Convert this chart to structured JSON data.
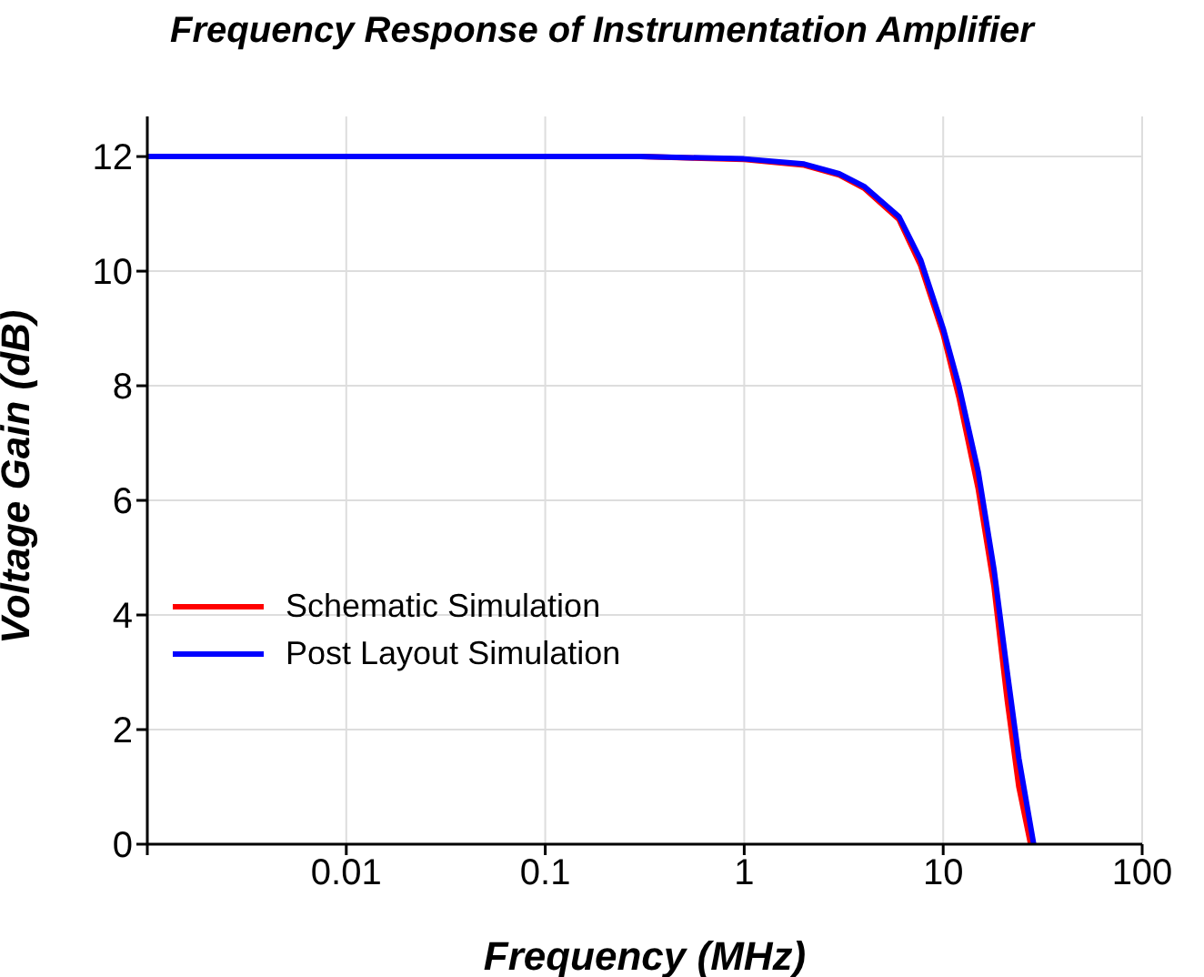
{
  "chart_data": {
    "type": "line",
    "title": "Frequency Response of Instrumentation Amplifier",
    "xlabel": "Frequency (MHz)",
    "ylabel": "Voltage Gain (dB)",
    "log": "x",
    "xlim": [
      0.001,
      100
    ],
    "xticks": [
      {
        "value": 0.001,
        "label": null
      },
      0.01,
      0.1,
      1,
      10,
      100
    ],
    "ylim": [
      0,
      12.7
    ],
    "yticks": [
      0,
      2,
      4,
      6,
      8,
      10,
      12
    ],
    "grid": true,
    "legend": "left",
    "line_style": "solid",
    "marker": "none",
    "series": [
      {
        "name": "Schematic Simulation",
        "color": "#ff0000",
        "x": [
          0.001,
          0.3,
          1,
          2,
          3,
          4,
          6,
          7.7,
          10,
          12,
          15,
          18,
          21,
          24,
          27.5
        ],
        "values": [
          12,
          12,
          11.95,
          11.85,
          11.68,
          11.45,
          10.9,
          10.1,
          8.9,
          7.8,
          6.2,
          4.5,
          2.5,
          1.0,
          0
        ]
      },
      {
        "name": "Post Layout Simulation",
        "color": "#0000ff",
        "x": [
          0.001,
          0.3,
          1,
          2,
          3,
          4,
          6,
          7.7,
          10,
          12,
          15,
          18,
          21,
          24,
          28.5
        ],
        "values": [
          12,
          12,
          11.96,
          11.87,
          11.7,
          11.48,
          10.95,
          10.2,
          9.0,
          8.0,
          6.5,
          4.8,
          3.0,
          1.5,
          0
        ]
      }
    ]
  }
}
